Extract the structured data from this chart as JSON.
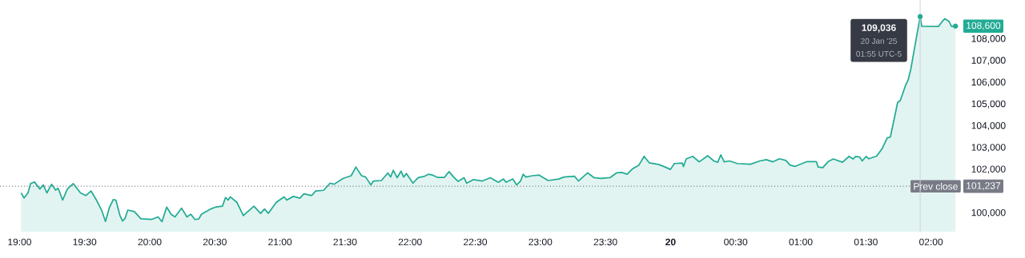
{
  "chart_data": {
    "type": "area",
    "x": [
      "2025-01-19T19:00:43",
      "2025-01-19T19:02:06",
      "2025-01-19T19:03:54",
      "2025-01-19T19:05:06",
      "2025-01-19T19:06:54",
      "2025-01-19T19:09:22",
      "2025-01-19T19:10:55",
      "2025-01-19T19:12:36",
      "2025-01-19T19:14:46",
      "2025-01-19T19:16:37",
      "2025-01-19T19:17:49",
      "2025-01-19T19:19:52",
      "2025-01-19T19:22:01",
      "2025-01-19T19:24:43",
      "2025-01-19T19:28:05",
      "2025-01-19T19:30:32",
      "2025-01-19T19:32:56",
      "2025-01-19T19:35:20",
      "2025-01-19T19:37:48",
      "2025-01-19T19:39:36",
      "2025-01-19T19:41:24",
      "2025-01-19T19:43:12",
      "2025-01-19T19:44:24",
      "2025-01-19T19:46:16",
      "2025-01-19T19:47:28",
      "2025-01-19T19:48:40",
      "2025-01-19T19:49:52",
      "2025-01-19T19:52:55",
      "2025-01-19T19:55:55",
      "2025-01-19T20:00:47",
      "2025-01-19T20:03:50",
      "2025-01-19T20:05:38",
      "2025-01-19T20:07:48",
      "2025-01-19T20:09:50",
      "2025-01-19T20:11:38",
      "2025-01-19T20:14:42",
      "2025-01-19T20:17:06",
      "2025-01-19T20:18:58",
      "2025-01-19T20:20:46",
      "2025-01-19T20:22:34",
      "2025-01-19T20:23:49",
      "2025-01-19T20:28:01",
      "2025-01-19T20:30:25",
      "2025-01-19T20:33:29",
      "2025-01-19T20:34:55",
      "2025-01-19T20:36:07",
      "2025-01-19T20:37:05",
      "2025-01-19T20:40:08",
      "2025-01-19T20:43:08",
      "2025-01-19T20:48:00",
      "2025-01-19T20:51:04",
      "2025-01-19T20:52:52",
      "2025-01-19T20:54:40",
      "2025-01-19T20:58:19",
      "2025-01-19T21:01:55",
      "2025-01-19T21:03:07",
      "2025-01-19T21:06:11",
      "2025-01-19T21:09:11",
      "2025-01-19T21:11:02",
      "2025-01-19T21:14:38",
      "2025-01-19T21:16:26",
      "2025-01-19T21:20:06",
      "2025-01-19T21:23:06",
      "2025-01-19T21:24:58",
      "2025-01-19T21:29:10",
      "2025-01-19T21:32:49",
      "2025-01-19T21:34:59",
      "2025-01-19T21:37:37",
      "2025-01-19T21:39:29",
      "2025-01-19T21:41:53",
      "2025-01-19T21:43:05",
      "2025-01-19T21:46:44",
      "2025-01-19T21:49:44",
      "2025-01-19T21:51:00",
      "2025-01-19T21:52:12",
      "2025-01-19T21:54:00",
      "2025-01-19T21:55:48",
      "2025-01-19T21:57:00",
      "2025-01-19T21:58:16",
      "2025-01-19T22:01:16",
      "2025-01-19T22:03:40",
      "2025-01-19T22:06:43",
      "2025-01-19T22:08:31",
      "2025-01-19T22:10:19",
      "2025-01-19T22:12:47",
      "2025-01-19T22:15:47",
      "2025-01-19T22:17:53",
      "2025-01-19T22:20:02",
      "2025-01-19T22:22:05",
      "2025-01-19T22:24:50",
      "2025-01-19T22:26:02",
      "2025-01-19T22:29:06",
      "2025-01-19T22:33:18",
      "2025-01-19T22:36:58",
      "2025-01-19T22:40:37",
      "2025-01-19T22:43:01",
      "2025-01-19T22:44:13",
      "2025-01-19T22:47:17",
      "2025-01-19T22:49:05",
      "2025-01-19T22:50:53",
      "2025-01-19T22:52:05",
      "2025-01-19T22:53:17",
      "2025-01-19T22:56:20",
      "2025-01-19T22:59:24",
      "2025-01-19T23:03:36",
      "2025-01-19T23:08:28",
      "2025-01-19T23:10:52",
      "2025-01-19T23:15:43",
      "2025-01-19T23:17:31",
      "2025-01-19T23:21:47",
      "2025-01-19T23:24:47",
      "2025-01-19T23:27:50",
      "2025-01-19T23:32:02",
      "2025-01-19T23:35:06",
      "2025-01-19T23:37:30",
      "2025-01-19T23:39:58",
      "2025-01-19T23:42:22",
      "2025-01-19T23:45:25",
      "2025-01-19T23:47:49",
      "2025-01-19T23:50:13",
      "2025-01-19T23:54:29",
      "2025-01-19T23:57:29",
      "2025-01-19T23:59:56",
      "2025-01-20T00:01:44",
      "2025-01-20T00:05:24",
      "2025-01-20T00:05:56",
      "2025-01-20T00:07:12",
      "2025-01-20T00:10:12",
      "2025-01-20T00:13:12",
      "2025-01-20T00:17:06",
      "2025-01-20T00:19:55",
      "2025-01-20T00:21:43",
      "2025-01-20T00:23:10",
      "2025-01-20T00:24:43",
      "2025-01-20T00:27:11",
      "2025-01-20T00:30:47",
      "2025-01-20T00:36:50",
      "2025-01-20T00:41:06",
      "2025-01-20T00:44:06",
      "2025-01-20T00:47:10",
      "2025-01-20T00:50:10",
      "2025-01-20T00:53:10",
      "2025-01-20T00:55:01",
      "2025-01-20T00:57:25",
      "2025-01-20T01:02:53",
      "2025-01-20T01:07:08",
      "2025-01-20T01:08:02",
      "2025-01-20T01:10:08",
      "2025-01-20T01:12:36",
      "2025-01-20T01:15:00",
      "2025-01-20T01:19:12",
      "2025-01-20T01:22:16",
      "2025-01-20T01:24:04",
      "2025-01-20T01:25:16",
      "2025-01-20T01:27:07",
      "2025-01-20T01:28:19",
      "2025-01-20T01:30:07",
      "2025-01-20T01:31:19",
      "2025-01-20T01:34:55",
      "2025-01-20T01:37:23",
      "2025-01-20T01:39:50",
      "2025-01-20T01:41:17",
      "2025-01-20T01:44:38",
      "2025-01-20T01:45:50",
      "2025-01-20T01:48:18",
      "2025-01-20T01:49:30",
      "2025-01-20T01:50:42",
      "2025-01-20T01:55",
      "2025-01-20T01:55:44",
      "2025-01-20T02:03:25",
      "2025-01-20T02:05:13",
      "2025-01-20T02:06:25",
      "2025-01-20T02:08:17",
      "2025-01-20T02:09:29",
      "2025-01-20T02:11:17"
    ],
    "series": [
      {
        "color": "#22ab94",
        "values": [
          100930,
          100700,
          100930,
          101360,
          101430,
          101110,
          101300,
          100930,
          101330,
          101060,
          101140,
          100600,
          101110,
          101360,
          100930,
          100810,
          101020,
          100620,
          100140,
          99620,
          100260,
          100620,
          100600,
          99890,
          99640,
          99770,
          100140,
          100070,
          99740,
          99710,
          99830,
          99610,
          100280,
          99950,
          99830,
          100230,
          99830,
          99950,
          99710,
          99730,
          99950,
          100190,
          100280,
          100320,
          100720,
          100600,
          100750,
          100500,
          99890,
          100320,
          99990,
          100190,
          99990,
          100500,
          100750,
          100600,
          100770,
          100690,
          100890,
          100810,
          101020,
          101050,
          101380,
          101330,
          101600,
          101720,
          102120,
          101720,
          101660,
          101300,
          101480,
          101500,
          101850,
          101660,
          101970,
          101630,
          101930,
          101660,
          101820,
          101380,
          101630,
          101700,
          101790,
          101750,
          101640,
          101640,
          101910,
          101660,
          101460,
          101630,
          101380,
          101540,
          101480,
          101630,
          101420,
          101570,
          101420,
          101570,
          101300,
          101480,
          101790,
          101660,
          101720,
          101750,
          101500,
          101570,
          101660,
          101700,
          101480,
          101850,
          101630,
          101600,
          101630,
          101850,
          101870,
          101790,
          102030,
          102210,
          102610,
          102310,
          102240,
          102120,
          102010,
          102280,
          102300,
          102140,
          102490,
          102610,
          102360,
          102640,
          102400,
          102340,
          102680,
          102360,
          102400,
          102280,
          102250,
          102400,
          102460,
          102360,
          102500,
          102420,
          102210,
          102150,
          102370,
          102370,
          102120,
          102090,
          102370,
          102490,
          102340,
          102610,
          102490,
          102610,
          102580,
          102400,
          102610,
          102500,
          102620,
          102950,
          103460,
          103500,
          105090,
          105170,
          105880,
          106130,
          106620,
          109036,
          108590,
          108580,
          108820,
          108940,
          108820,
          108580,
          108600
        ]
      }
    ],
    "xlim": [
      "2025-01-19T18:51",
      "2025-01-20T02:13:48"
    ],
    "ylim": [
      99150,
      109800
    ],
    "xticks": [
      {
        "value": "2025-01-19T19:00",
        "label": "19:00"
      },
      {
        "value": "2025-01-19T19:30",
        "label": "19:30"
      },
      {
        "value": "2025-01-19T20:00",
        "label": "20:00"
      },
      {
        "value": "2025-01-19T20:30",
        "label": "20:30"
      },
      {
        "value": "2025-01-19T21:00",
        "label": "21:00"
      },
      {
        "value": "2025-01-19T21:30",
        "label": "21:30"
      },
      {
        "value": "2025-01-19T22:00",
        "label": "22:00"
      },
      {
        "value": "2025-01-19T22:30",
        "label": "22:30"
      },
      {
        "value": "2025-01-19T23:00",
        "label": "23:00"
      },
      {
        "value": "2025-01-19T23:30",
        "label": "23:30"
      },
      {
        "value": "2025-01-20",
        "label": "**20**"
      },
      {
        "value": "2025-01-20T00:30",
        "label": "00:30"
      },
      {
        "value": "2025-01-20T01:00",
        "label": "01:00"
      },
      {
        "value": "2025-01-20T01:30",
        "label": "01:30"
      },
      {
        "value": "2025-01-20T02:00",
        "label": "02:00"
      }
    ],
    "yticks": [
      {
        "value": 100000,
        "label": "100,000"
      },
      {
        "value": 102000,
        "label": "102,000"
      },
      {
        "value": 103000,
        "label": "103,000"
      },
      {
        "value": 104000,
        "label": "104,000"
      },
      {
        "value": 105000,
        "label": "105,000"
      },
      {
        "value": 106000,
        "label": "106,000"
      },
      {
        "value": 107000,
        "label": "107,000"
      },
      {
        "value": 108000,
        "label": "108,000"
      }
    ],
    "ref_lines": [
      {
        "axis": "y",
        "value": 101237,
        "label": "Prev close",
        "color": "#787b86",
        "line_style": "dotted"
      },
      {
        "axis": "x",
        "value": "2025-01-20T01:55",
        "color": "#d1d4dc",
        "line_style": "solid"
      }
    ],
    "annotations": [
      {
        "text": "109,036",
        "x": "2025-01-20T01:55",
        "y": 109036
      },
      "20 Jan '25",
      "01:55 UTC-5",
      {
        "text": "108,600",
        "x": "2025-01-20T02:11:17",
        "y": 108600
      },
      {
        "text": "101,237",
        "x": "2025-01-20T02:13:48",
        "y": 101237
      }
    ]
  }
}
